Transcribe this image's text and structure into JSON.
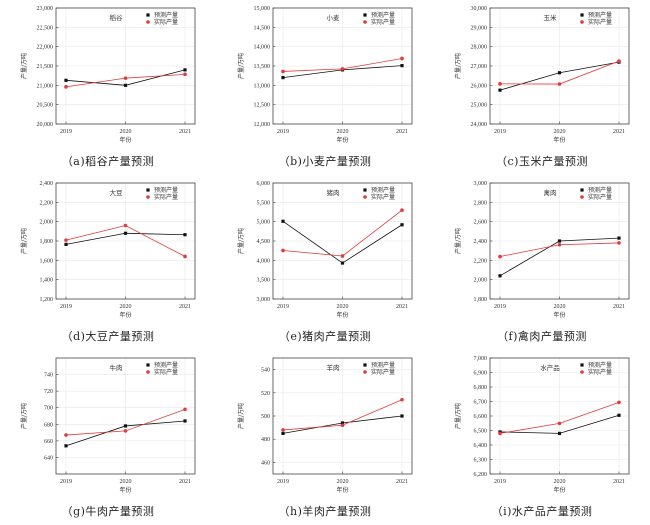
{
  "colors": {
    "predicted": "#111111",
    "actual": "#e23a3a",
    "axis": "#444444",
    "grid": "#e8e8e8"
  },
  "chart_data": [
    {
      "type": "line",
      "title": "稻谷",
      "caption": "（a)稻谷产量预测",
      "xlabel": "年份",
      "ylabel": "产量/万吨",
      "categories": [
        "2019",
        "2020",
        "2021"
      ],
      "ylim": [
        20000,
        23000
      ],
      "yticks": [
        20000,
        20500,
        21000,
        21500,
        22000,
        22500,
        23000
      ],
      "series": [
        {
          "name": "预测产量",
          "values": [
            21130,
            21000,
            21400
          ]
        },
        {
          "name": "实际产量",
          "values": [
            20961,
            21186,
            21284
          ]
        }
      ]
    },
    {
      "type": "line",
      "title": "小麦",
      "caption": "（b)小麦产量预测",
      "xlabel": "年份",
      "ylabel": "产量/万吨",
      "categories": [
        "2019",
        "2020",
        "2021"
      ],
      "ylim": [
        12000,
        15000
      ],
      "yticks": [
        12000,
        12500,
        13000,
        13500,
        14000,
        14500,
        15000
      ],
      "series": [
        {
          "name": "预测产量",
          "values": [
            13200,
            13400,
            13510
          ]
        },
        {
          "name": "实际产量",
          "values": [
            13359,
            13425,
            13695
          ]
        }
      ]
    },
    {
      "type": "line",
      "title": "玉米",
      "caption": "（c)玉米产量预测",
      "xlabel": "年份",
      "ylabel": "产量/万吨",
      "categories": [
        "2019",
        "2020",
        "2021"
      ],
      "ylim": [
        24000,
        30000
      ],
      "yticks": [
        24000,
        25000,
        26000,
        27000,
        28000,
        29000,
        30000
      ],
      "series": [
        {
          "name": "预测产量",
          "values": [
            25750,
            26650,
            27200
          ]
        },
        {
          "name": "实际产量",
          "values": [
            26077,
            26067,
            27255
          ]
        }
      ]
    },
    {
      "type": "line",
      "title": "大豆",
      "caption": "（d)大豆产量预测",
      "xlabel": "年份",
      "ylabel": "产量/万吨",
      "categories": [
        "2019",
        "2020",
        "2021"
      ],
      "ylim": [
        1200,
        2400
      ],
      "yticks": [
        1200,
        1400,
        1600,
        1800,
        2000,
        2200,
        2400
      ],
      "series": [
        {
          "name": "预测产量",
          "values": [
            1765,
            1880,
            1865
          ]
        },
        {
          "name": "实际产量",
          "values": [
            1809,
            1960,
            1640
          ]
        }
      ]
    },
    {
      "type": "line",
      "title": "猪肉",
      "caption": "（e)猪肉产量预测",
      "xlabel": "年份",
      "ylabel": "产量/万吨",
      "categories": [
        "2019",
        "2020",
        "2021"
      ],
      "ylim": [
        3000,
        6000
      ],
      "yticks": [
        3000,
        3500,
        4000,
        4500,
        5000,
        5500,
        6000
      ],
      "series": [
        {
          "name": "预测产量",
          "values": [
            5010,
            3930,
            4920
          ]
        },
        {
          "name": "实际产量",
          "values": [
            4255,
            4113,
            5296
          ]
        }
      ]
    },
    {
      "type": "line",
      "title": "禽肉",
      "caption": "（f)禽肉产量预测",
      "xlabel": "年份",
      "ylabel": "产量/万吨",
      "categories": [
        "2019",
        "2020",
        "2021"
      ],
      "ylim": [
        1800,
        3000
      ],
      "yticks": [
        1800,
        2000,
        2200,
        2400,
        2600,
        2800,
        3000
      ],
      "series": [
        {
          "name": "预测产量",
          "values": [
            2040,
            2400,
            2430
          ]
        },
        {
          "name": "实际产量",
          "values": [
            2239,
            2361,
            2380
          ]
        }
      ]
    },
    {
      "type": "line",
      "title": "牛肉",
      "caption": "（g)牛肉产量预测",
      "xlabel": "年份",
      "ylabel": "产量/万吨",
      "categories": [
        "2019",
        "2020",
        "2021"
      ],
      "ylim": [
        620,
        760
      ],
      "yticks": [
        640,
        660,
        680,
        700,
        720,
        740
      ],
      "series": [
        {
          "name": "预测产量",
          "values": [
            654,
            678,
            684
          ]
        },
        {
          "name": "实际产量",
          "values": [
            667,
            672,
            698
          ]
        }
      ]
    },
    {
      "type": "line",
      "title": "羊肉",
      "caption": "（h)羊肉产量预测",
      "xlabel": "年份",
      "ylabel": "产量/万吨",
      "categories": [
        "2019",
        "2020",
        "2021"
      ],
      "ylim": [
        450,
        550
      ],
      "yticks": [
        460,
        480,
        500,
        520,
        540
      ],
      "series": [
        {
          "name": "预测产量",
          "values": [
            485,
            494,
            500
          ]
        },
        {
          "name": "实际产量",
          "values": [
            488,
            492,
            514
          ]
        }
      ]
    },
    {
      "type": "line",
      "title": "水产品",
      "caption": "（i)水产品产量预测",
      "xlabel": "年份",
      "ylabel": "产量/万吨",
      "categories": [
        "2019",
        "2020",
        "2021"
      ],
      "ylim": [
        6200,
        7000
      ],
      "yticks": [
        6200,
        6300,
        6400,
        6500,
        6600,
        6700,
        6800,
        6900,
        7000
      ],
      "series": [
        {
          "name": "预测产量",
          "values": [
            6490,
            6480,
            6605
          ]
        },
        {
          "name": "实际产量",
          "values": [
            6480,
            6549,
            6694
          ]
        }
      ]
    }
  ]
}
